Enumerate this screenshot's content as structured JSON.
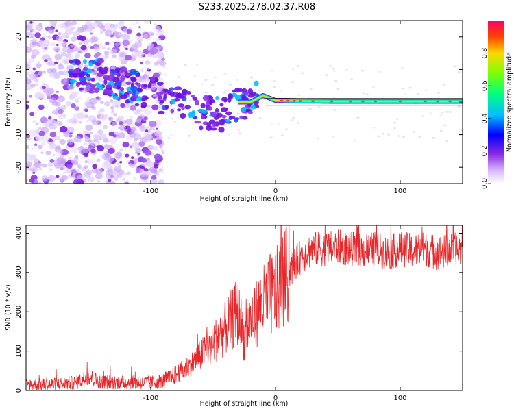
{
  "title": "S233.2025.278.02.37.R08",
  "chart_data": [
    {
      "type": "heatmap",
      "name": "spectrogram",
      "xlabel": "Height of straight line (km)",
      "ylabel": "Frequency (Hz)",
      "xlim": [
        -200,
        150
      ],
      "ylim": [
        -25,
        25
      ],
      "xticks": [
        -100,
        0,
        100
      ],
      "xtick_labels": [
        "-100",
        "0",
        "100"
      ],
      "yticks": [
        -20,
        -10,
        0,
        10,
        20
      ],
      "ytick_labels": [
        "-20",
        "-10",
        "0",
        "10",
        "20"
      ],
      "colorbar": {
        "label": "Normalized spectral amplitude",
        "range": [
          0,
          1
        ],
        "ticks": [
          0,
          0.2,
          0.4,
          0.6,
          0.8
        ],
        "tick_labels": [
          "0.0",
          "0.2",
          "0.4",
          "0.6",
          "0.8"
        ]
      },
      "ridge": {
        "description_free": true,
        "x": [
          -160,
          -140,
          -120,
          -100,
          -80,
          -60,
          -40,
          -30,
          -20,
          -10,
          0,
          20,
          50,
          100,
          150
        ],
        "y": [
          8,
          8,
          5,
          3,
          0,
          -3,
          -4,
          0,
          0,
          2,
          0.5,
          0.3,
          0.2,
          0.2,
          0.2
        ]
      }
    },
    {
      "type": "line",
      "name": "snr",
      "xlabel": "Height of straight line (km)",
      "ylabel": "SNR (10 * v/v)",
      "xlim": [
        -200,
        150
      ],
      "ylim": [
        0,
        420
      ],
      "xticks": [
        -100,
        0,
        100
      ],
      "xtick_labels": [
        "-100",
        "0",
        "100"
      ],
      "yticks": [
        0,
        100,
        200,
        300,
        400
      ],
      "ytick_labels": [
        "0",
        "100",
        "200",
        "300",
        "400"
      ],
      "color": "#e8272a",
      "x": [
        -200,
        -180,
        -160,
        -150,
        -140,
        -120,
        -100,
        -90,
        -80,
        -70,
        -60,
        -50,
        -40,
        -35,
        -30,
        -25,
        -20,
        -15,
        -10,
        -5,
        0,
        5,
        10,
        15,
        20,
        25,
        30,
        40,
        50,
        60,
        70,
        80,
        90,
        100,
        110,
        120,
        130,
        140,
        150
      ],
      "y": [
        15,
        15,
        20,
        35,
        22,
        20,
        20,
        25,
        40,
        60,
        90,
        120,
        160,
        180,
        200,
        130,
        180,
        200,
        220,
        240,
        250,
        275,
        295,
        320,
        340,
        350,
        360,
        360,
        365,
        360,
        355,
        360,
        350,
        360,
        355,
        360,
        350,
        355,
        360
      ]
    }
  ]
}
